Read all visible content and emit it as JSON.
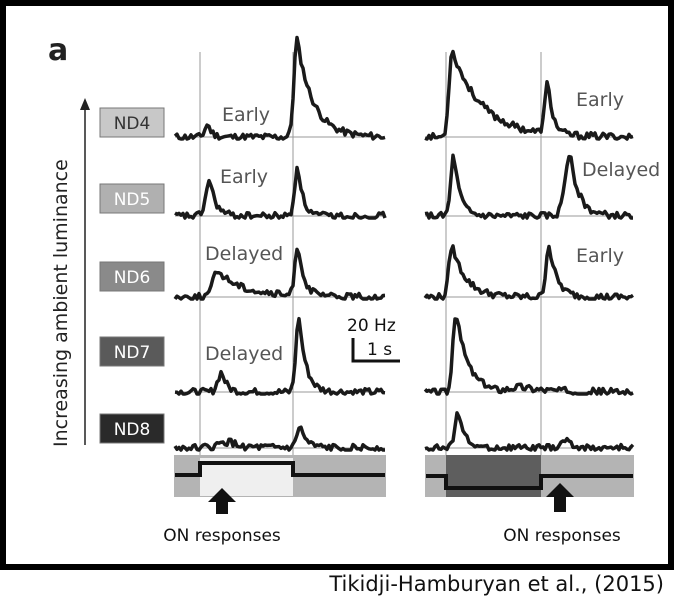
{
  "panel_letter": "a",
  "axis_label": "Increasing ambient luminance",
  "scale_bar": {
    "y_label": "20 Hz",
    "x_label": "1 s"
  },
  "conditions": [
    {
      "name": "ND4",
      "fill": "#c8c8c8",
      "text_color": "#333333",
      "left_annotation": "Early",
      "right_annotation": "Early"
    },
    {
      "name": "ND5",
      "fill": "#b0b0b0",
      "text_color": "#ffffff",
      "left_annotation": "Early",
      "right_annotation": "Delayed"
    },
    {
      "name": "ND6",
      "fill": "#8a8a8a",
      "text_color": "#ffffff",
      "left_annotation": "Delayed",
      "right_annotation": "Early"
    },
    {
      "name": "ND7",
      "fill": "#5a5a5a",
      "text_color": "#ffffff",
      "left_annotation": "Delayed",
      "right_annotation": ""
    },
    {
      "name": "ND8",
      "fill": "#2a2a2a",
      "text_color": "#ffffff",
      "left_annotation": "",
      "right_annotation": ""
    }
  ],
  "stimulus": {
    "left_label": "ON responses",
    "right_label": "ON responses"
  },
  "credit": "Tikidji-Hamburyan et al., (2015)",
  "colors": {
    "trace": "#1a1a1a",
    "grid": "#999999",
    "frame": "#000000"
  }
}
